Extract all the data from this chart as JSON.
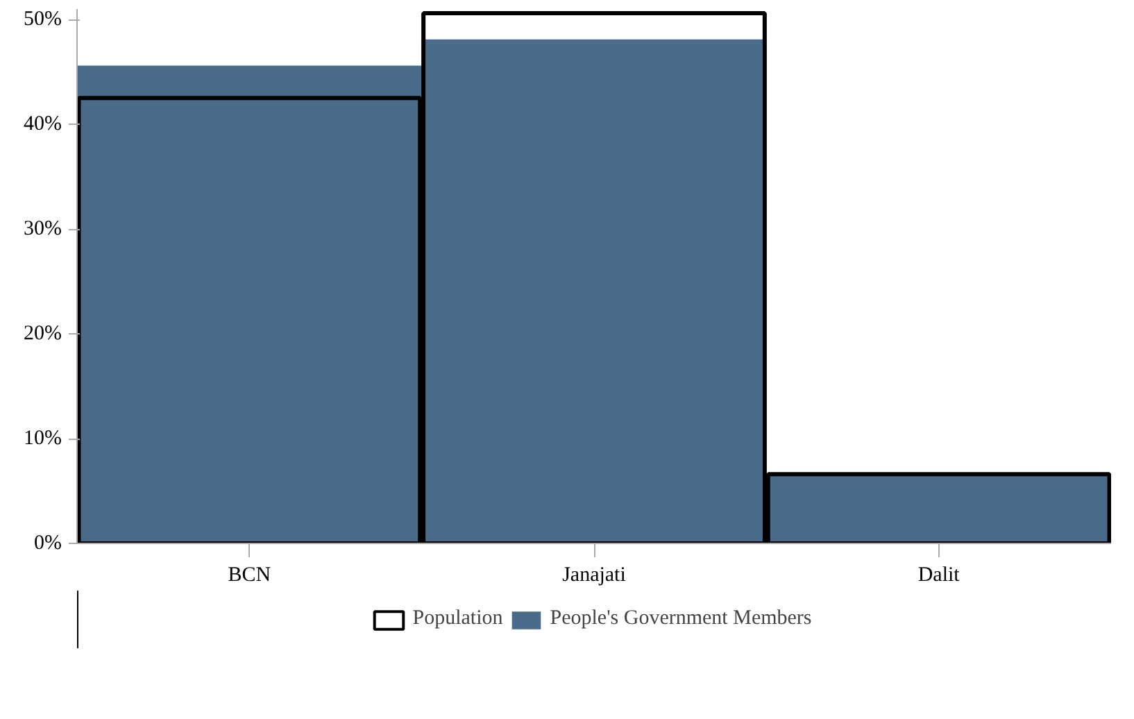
{
  "chart_data": {
    "type": "bar",
    "categories": [
      "BCN",
      "Janajati",
      "Dalit"
    ],
    "series": [
      {
        "name": "Population",
        "color": "#000000",
        "values": [
          42.5,
          50.6,
          6.6
        ]
      },
      {
        "name": "People's Government Members",
        "color": "#4a6b8a",
        "values": [
          45.6,
          48.1,
          6.6
        ]
      }
    ],
    "ylim": [
      0,
      51
    ],
    "yticks": [
      {
        "value": 0,
        "label": "0%"
      },
      {
        "value": 10,
        "label": "10%"
      },
      {
        "value": 20,
        "label": "20%"
      },
      {
        "value": 30,
        "label": "30%"
      },
      {
        "value": 40,
        "label": "40%"
      },
      {
        "value": 50,
        "label": "50%"
      }
    ],
    "grid": false,
    "legend": "bottom"
  }
}
